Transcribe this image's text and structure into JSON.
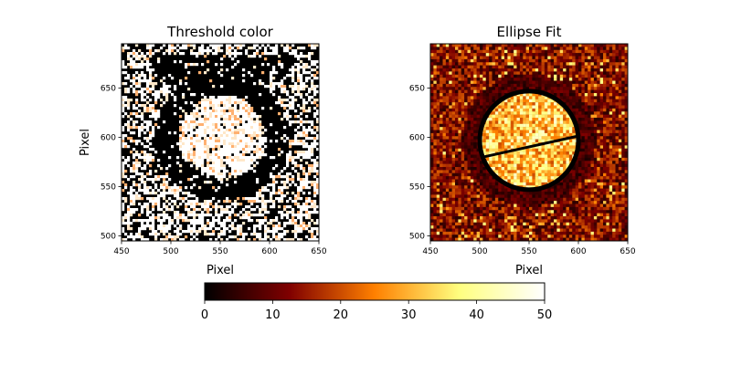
{
  "chart_data": [
    {
      "type": "heatmap",
      "title": "Threshold color",
      "xlabel": "Pixel",
      "ylabel": "Pixel",
      "xlim": [
        450,
        650
      ],
      "ylim": [
        495,
        695
      ],
      "xticks": [
        450,
        500,
        550,
        600,
        650
      ],
      "yticks": [
        500,
        550,
        600,
        650
      ],
      "xtick_labels": [
        "450",
        "500",
        "550",
        "600",
        "650"
      ],
      "ytick_labels": [
        "500",
        "550",
        "600",
        "650"
      ],
      "features": {
        "bright_disk": {
          "center": [
            552,
            600
          ],
          "radius": 42,
          "value": 50
        },
        "dark_ring": {
          "center": [
            552,
            600
          ],
          "inner_radius": 45,
          "outer_radius": 68,
          "value": 0
        },
        "background": "mixed black/white speckle"
      }
    },
    {
      "type": "heatmap",
      "title": "Ellipse Fit",
      "xlabel": "Pixel",
      "ylabel": "",
      "xlim": [
        450,
        650
      ],
      "ylim": [
        495,
        695
      ],
      "xticks": [
        450,
        500,
        550,
        600,
        650
      ],
      "yticks": [
        500,
        550,
        600,
        650
      ],
      "xtick_labels": [
        "450",
        "500",
        "550",
        "600",
        "650"
      ],
      "ytick_labels": [
        "500",
        "550",
        "600",
        "650"
      ],
      "ellipse": {
        "center": [
          550,
          597
        ],
        "semi_axis_x": 50,
        "semi_axis_y": 50,
        "color": "#000000"
      },
      "major_axis_line": {
        "from": [
          503,
          580
        ],
        "to": [
          598,
          601
        ],
        "color": "#000000"
      }
    }
  ],
  "colorbar": {
    "colormap": "afmhot",
    "vmin": 0,
    "vmax": 50,
    "ticks": [
      0,
      10,
      20,
      30,
      40,
      50
    ],
    "tick_labels": [
      "0",
      "10",
      "20",
      "30",
      "40",
      "50"
    ]
  }
}
